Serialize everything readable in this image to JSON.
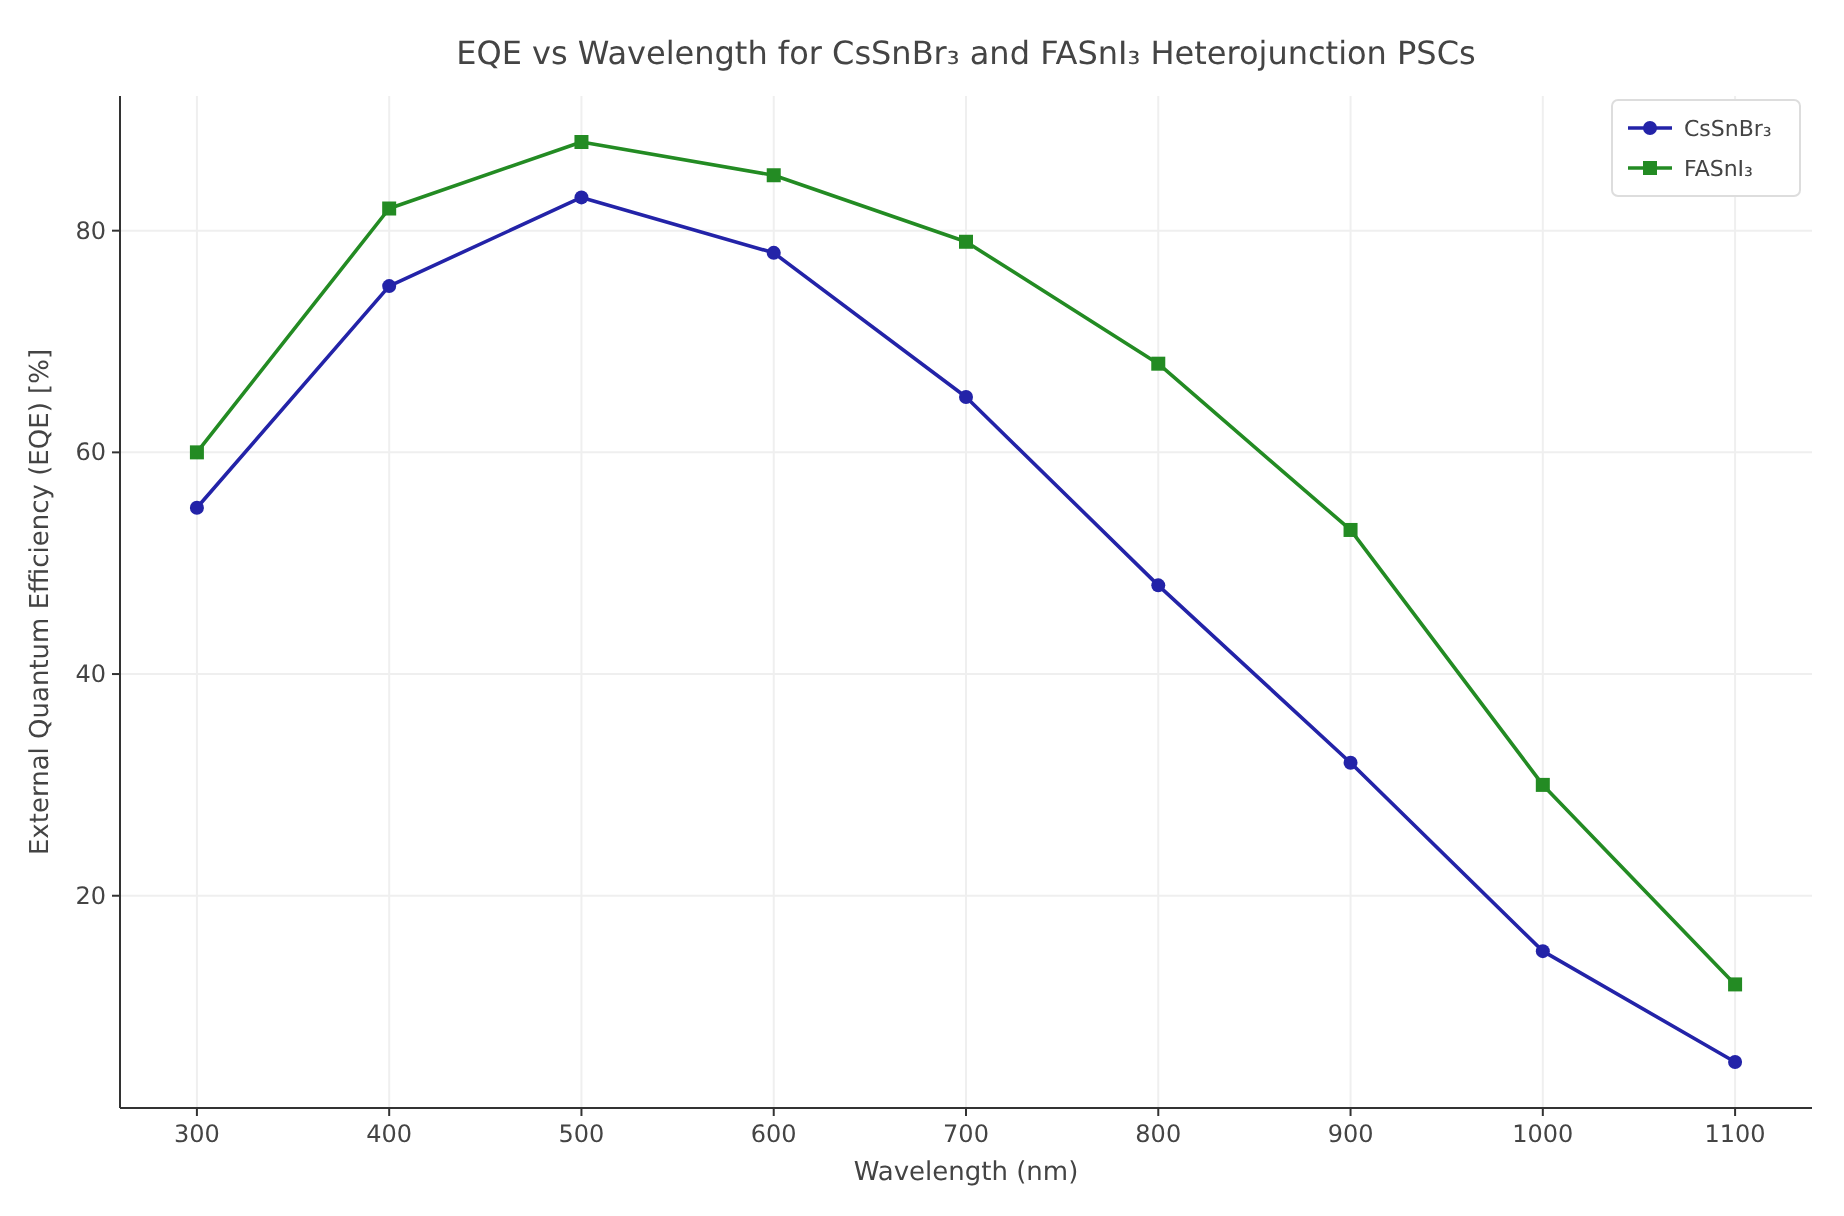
{
  "chart_data": {
    "type": "line",
    "title": "EQE vs Wavelength for CsSnBr₃ and FASnI₃ Heterojunction PSCs",
    "xlabel": "Wavelength (nm)",
    "ylabel": "External Quantum Efficiency (EQE) [%]",
    "x": [
      300,
      400,
      500,
      600,
      700,
      800,
      900,
      1000,
      1100
    ],
    "series": [
      {
        "name": "CsSnBr₃",
        "color": "#2323a8",
        "marker": "circle",
        "values": [
          55,
          75,
          83,
          78,
          65,
          48,
          32,
          15,
          5
        ]
      },
      {
        "name": "FASnI₃",
        "color": "#238b23",
        "marker": "square",
        "values": [
          60,
          82,
          88,
          85,
          79,
          68,
          53,
          30,
          12
        ]
      }
    ],
    "xlim": [
      260,
      1140
    ],
    "xticks": [
      300,
      400,
      500,
      600,
      700,
      800,
      900,
      1000,
      1100
    ],
    "ylim": [
      0.85,
      92.15
    ],
    "yticks": [
      20,
      40,
      60,
      80
    ],
    "grid": true,
    "legend": "top right",
    "line_style": "solid"
  }
}
